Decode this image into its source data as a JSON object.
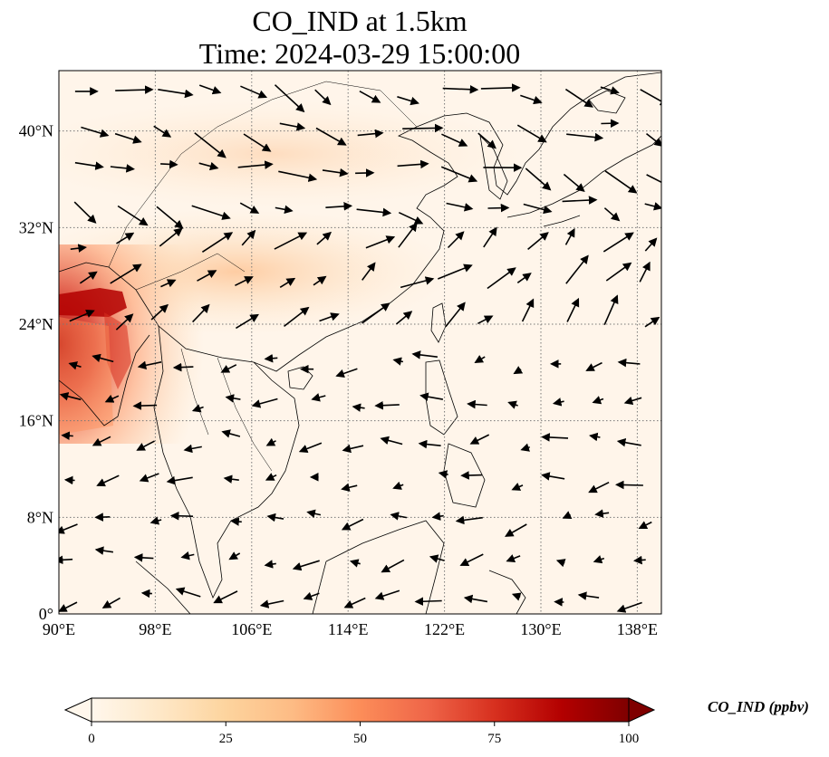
{
  "title": {
    "line1": "CO_IND at 1.5km",
    "line2": "Time: 2024-03-29 15:00:00"
  },
  "map": {
    "lon_range": [
      90,
      140
    ],
    "lat_range": [
      0,
      45
    ],
    "lon_ticks": [
      {
        "value": 90,
        "label": "90°E"
      },
      {
        "value": 98,
        "label": "98°E"
      },
      {
        "value": 106,
        "label": "106°E"
      },
      {
        "value": 114,
        "label": "114°E"
      },
      {
        "value": 122,
        "label": "122°E"
      },
      {
        "value": 130,
        "label": "130°E"
      },
      {
        "value": 138,
        "label": "138°E"
      }
    ],
    "lat_ticks": [
      {
        "value": 0,
        "label": "0°"
      },
      {
        "value": 8,
        "label": "8°N"
      },
      {
        "value": 16,
        "label": "16°N"
      },
      {
        "value": 24,
        "label": "24°N"
      },
      {
        "value": 32,
        "label": "32°N"
      },
      {
        "value": 40,
        "label": "40°N"
      }
    ],
    "gridlines": "dotted",
    "vectors": "wind arrows",
    "field": "CO_IND concentration (filled)"
  },
  "colorbar": {
    "label": "CO_IND (ppbv)",
    "ticks": [
      {
        "value": 0,
        "label": "0"
      },
      {
        "value": 25,
        "label": "25"
      },
      {
        "value": 50,
        "label": "50"
      },
      {
        "value": 75,
        "label": "75"
      },
      {
        "value": 100,
        "label": "100"
      }
    ],
    "range": [
      0,
      100
    ],
    "extend": "both",
    "colormap": "OrRd",
    "colors": [
      "#fff7ec",
      "#fee8c8",
      "#fdd49e",
      "#fdbb84",
      "#fc8d59",
      "#ef6548",
      "#d7301f",
      "#b30000",
      "#7f0000"
    ]
  }
}
